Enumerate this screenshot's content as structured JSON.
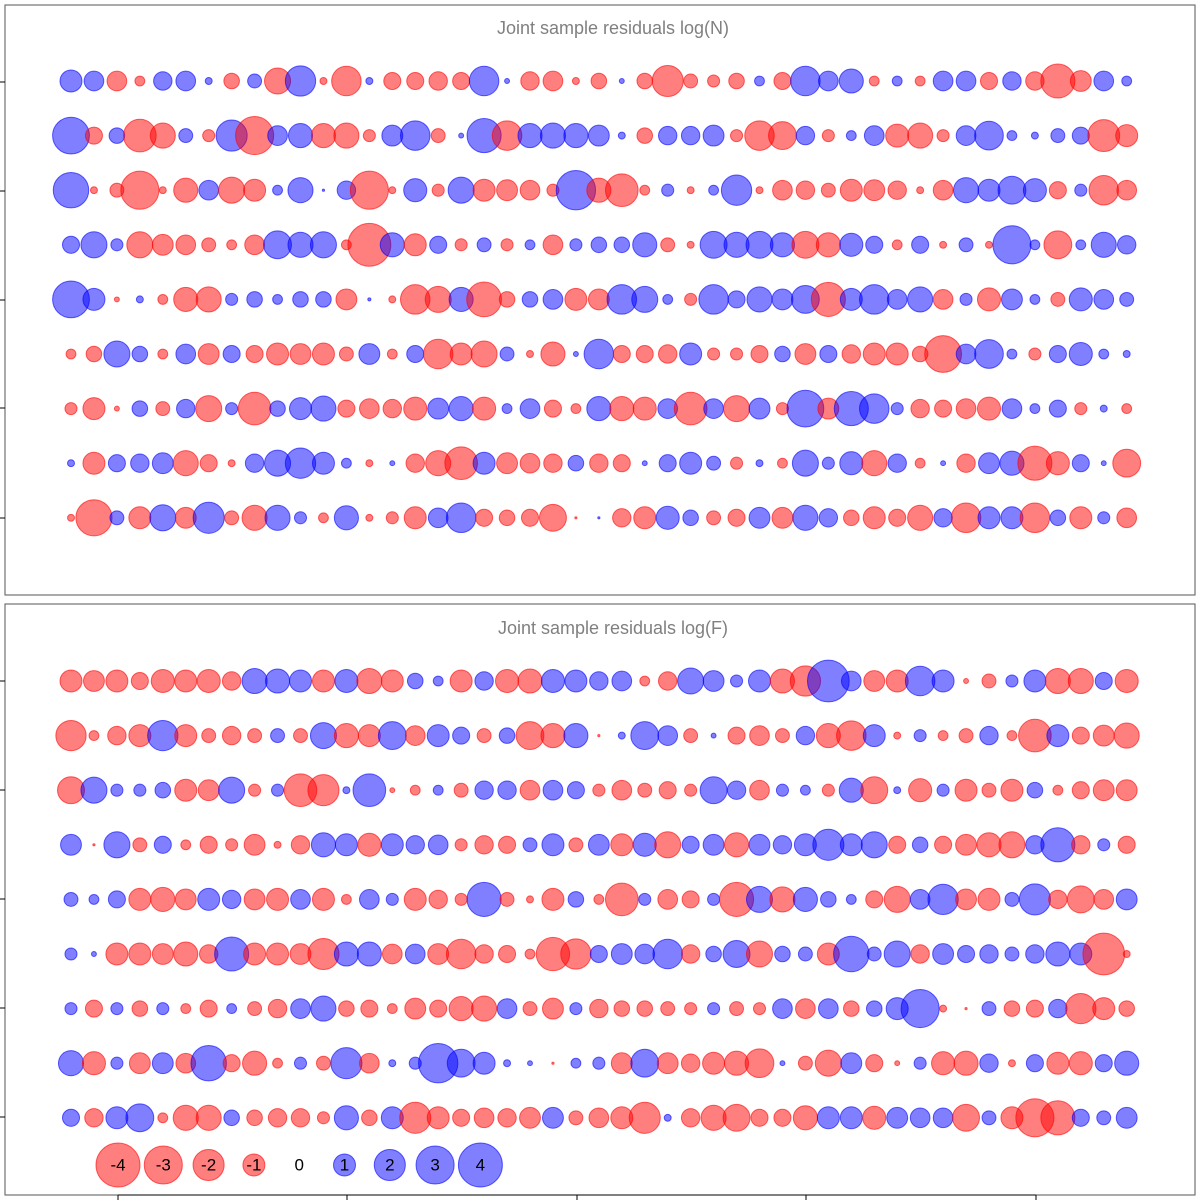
{
  "chart_data": [
    {
      "type": "bubble",
      "title": "Joint sample residuals log(N)",
      "negative_color": "#ff0000",
      "positive_color": "#0000ff",
      "rows": [
        [
          1.0,
          0.8,
          -0.8,
          -0.2,
          0.7,
          0.8,
          0.1,
          -0.5,
          0.4,
          -1.4,
          1.9,
          -0.1,
          -1.8,
          0.1,
          -0.6,
          -0.6,
          -0.7,
          -0.6,
          1.8,
          0.05,
          -0.7,
          -0.8,
          -0.1,
          -0.5,
          0.05,
          -0.5,
          -2.0,
          -0.4,
          -0.3,
          -0.5,
          0.2,
          -0.6,
          1.8,
          0.8,
          1.2,
          -0.2,
          0.2,
          -0.2,
          0.8,
          0.8,
          -0.6,
          0.7,
          -0.7,
          -2.4,
          -0.9,
          0.8,
          0.2
        ],
        [
          2.8,
          -0.6,
          0.5,
          -2.2,
          -1.3,
          0.4,
          -0.3,
          2.0,
          -3.0,
          0.8,
          1.2,
          -1.2,
          -1.3,
          -0.3,
          0.9,
          1.8,
          -0.4,
          0.05,
          2.4,
          -1.8,
          1.2,
          1.3,
          1.2,
          0.9,
          0.1,
          -0.5,
          0.7,
          0.7,
          0.9,
          -0.3,
          -1.8,
          -1.6,
          0.7,
          -0.3,
          0.2,
          0.8,
          -1.1,
          -1.3,
          -0.3,
          0.8,
          1.7,
          0.2,
          0.1,
          0.4,
          0.6,
          -2.1,
          -1.0
        ],
        [
          2.6,
          -0.1,
          -0.4,
          -3.0,
          -0.1,
          -1.2,
          0.8,
          -1.4,
          -1.0,
          0.2,
          1.3,
          0.01,
          0.7,
          -3.0,
          -0.1,
          1.1,
          -0.3,
          1.4,
          -1.0,
          -0.9,
          -0.8,
          -0.3,
          3.2,
          -1.2,
          -2.2,
          -0.2,
          0.3,
          -0.1,
          0.2,
          1.9,
          -0.1,
          -0.8,
          -0.7,
          -0.4,
          -1.0,
          -0.9,
          -0.7,
          -0.1,
          -0.8,
          1.3,
          1.0,
          1.6,
          1.1,
          -0.6,
          0.3,
          -1.8,
          -0.8
        ],
        [
          0.6,
          1.4,
          0.3,
          -1.4,
          -0.9,
          -0.8,
          -0.4,
          -0.2,
          -0.8,
          1.6,
          1.3,
          1.4,
          -0.2,
          -3.8,
          1.2,
          -1.0,
          0.6,
          -0.3,
          0.4,
          -0.3,
          0.2,
          -0.8,
          0.3,
          0.5,
          0.5,
          1.2,
          -0.4,
          -0.1,
          1.5,
          1.3,
          1.5,
          1.2,
          -1.5,
          -1.2,
          1.1,
          0.6,
          -0.2,
          0.6,
          -0.1,
          0.4,
          -0.1,
          3.0,
          0.2,
          -1.6,
          0.2,
          1.3,
          0.7
        ],
        [
          2.8,
          1.0,
          -0.05,
          0.1,
          -0.2,
          -1.2,
          -1.3,
          0.3,
          0.5,
          0.2,
          0.5,
          0.5,
          -0.9,
          0.02,
          -0.1,
          -1.8,
          -1.4,
          1.2,
          -2.5,
          -0.5,
          0.5,
          0.8,
          -1.0,
          -0.9,
          1.8,
          1.4,
          0.2,
          -0.3,
          1.8,
          0.6,
          1.3,
          0.9,
          1.6,
          -2.4,
          1.0,
          1.8,
          0.8,
          1.3,
          -0.8,
          0.3,
          -1.1,
          0.9,
          0.2,
          -0.4,
          1.1,
          0.8,
          0.4
        ],
        [
          -0.2,
          -0.5,
          1.4,
          0.5,
          -0.2,
          0.8,
          -0.9,
          0.6,
          -0.6,
          -1.0,
          -0.9,
          -1.0,
          -0.4,
          0.9,
          -0.2,
          0.6,
          -1.8,
          -1.0,
          -1.4,
          0.4,
          -0.1,
          -1.2,
          0.05,
          1.8,
          -0.6,
          -0.6,
          -0.7,
          1.0,
          -0.3,
          -0.3,
          -0.6,
          0.5,
          -0.9,
          0.6,
          -0.7,
          -1.0,
          -1.0,
          -0.5,
          -2.8,
          0.8,
          1.7,
          0.2,
          -0.3,
          0.6,
          1.1,
          0.2,
          0.1
        ],
        [
          -0.3,
          -1.0,
          -0.05,
          0.5,
          -0.4,
          0.7,
          -1.4,
          0.3,
          -2.2,
          0.5,
          1.0,
          1.3,
          -0.6,
          -0.8,
          -0.7,
          -1.1,
          0.9,
          1.2,
          -1.1,
          0.2,
          0.8,
          -0.6,
          -0.2,
          1.2,
          -1.2,
          -1.1,
          0.8,
          -2.2,
          0.8,
          -1.4,
          0.9,
          -0.3,
          2.8,
          -0.9,
          2.4,
          1.8,
          0.3,
          -0.7,
          -0.6,
          -0.8,
          -1.1,
          0.8,
          0.2,
          0.6,
          -0.3,
          0.1,
          -0.2
        ],
        [
          0.1,
          -1.0,
          0.6,
          0.7,
          0.9,
          -1.3,
          -0.6,
          -0.1,
          0.7,
          1.4,
          1.9,
          1.0,
          0.2,
          -0.1,
          0.05,
          -0.7,
          -1.3,
          -2.2,
          1.0,
          -0.9,
          -0.8,
          -0.7,
          0.5,
          -0.7,
          -0.6,
          0.05,
          0.6,
          1.0,
          0.4,
          -0.3,
          0.1,
          -0.2,
          1.4,
          0.3,
          1.1,
          -1.3,
          0.7,
          -0.2,
          0.05,
          -0.7,
          0.9,
          1.2,
          -2.4,
          -1.1,
          0.6,
          0.05,
          -1.6
        ],
        [
          -0.1,
          -2.7,
          0.4,
          -1.0,
          1.4,
          -0.9,
          2.0,
          -0.4,
          -1.3,
          1.3,
          0.3,
          -0.2,
          1.2,
          -0.1,
          -0.3,
          -1.0,
          0.8,
          1.8,
          -0.6,
          -0.5,
          -0.6,
          -1.5,
          -0.01,
          0.01,
          -0.7,
          -1.0,
          1.1,
          0.5,
          -0.4,
          -0.6,
          0.9,
          -0.9,
          1.3,
          0.7,
          -0.5,
          -1.0,
          -0.6,
          -1.3,
          0.7,
          -1.8,
          1.0,
          1.0,
          -1.8,
          0.5,
          -1.0,
          0.3,
          -0.8
        ]
      ]
    },
    {
      "type": "bubble",
      "title": "Joint sample residuals log(F)",
      "negative_color": "#ff0000",
      "positive_color": "#0000ff",
      "rows": [
        [
          -1.0,
          -0.9,
          -1.0,
          -0.6,
          -1.1,
          -1.0,
          -1.1,
          -0.7,
          1.3,
          1.2,
          1.0,
          -1.0,
          1.1,
          -1.3,
          -1.0,
          0.5,
          0.2,
          -1.0,
          0.7,
          -1.1,
          -1.2,
          1.1,
          1.0,
          0.7,
          0.8,
          -0.2,
          -0.7,
          1.4,
          0.9,
          0.3,
          1.0,
          -1.2,
          -1.9,
          3.6,
          0.8,
          -0.9,
          -1.0,
          1.8,
          1.0,
          -0.05,
          -0.4,
          0.3,
          1.0,
          -1.3,
          -1.3,
          0.6,
          -1.1
        ],
        [
          -1.9,
          -0.2,
          -0.7,
          -1.0,
          1.9,
          -1.0,
          -0.4,
          -0.7,
          -0.4,
          0.4,
          -0.4,
          1.4,
          -1.2,
          -1.0,
          1.6,
          -0.8,
          1.0,
          0.6,
          -0.4,
          0.5,
          -1.6,
          -1.2,
          1.2,
          -0.01,
          0.1,
          1.6,
          0.8,
          -0.4,
          0.05,
          -0.6,
          -0.8,
          -0.4,
          0.7,
          -1.2,
          -1.8,
          1.0,
          -0.1,
          0.3,
          -0.2,
          -0.4,
          0.7,
          -0.2,
          -2.2,
          1.0,
          -0.6,
          -0.9,
          -1.3
        ],
        [
          -1.5,
          1.4,
          0.3,
          0.3,
          0.5,
          -1.0,
          -0.9,
          1.4,
          -0.3,
          0.3,
          -2.2,
          -2.0,
          0.1,
          2.2,
          -0.05,
          -0.2,
          0.2,
          -0.4,
          0.7,
          0.7,
          -0.8,
          0.8,
          0.6,
          -0.3,
          -0.8,
          -0.4,
          -0.6,
          -0.3,
          1.5,
          0.7,
          -0.8,
          0.3,
          0.2,
          -0.3,
          1.2,
          -1.5,
          0.1,
          -1.1,
          0.3,
          -1.0,
          -0.4,
          -1.0,
          0.5,
          -0.2,
          -0.6,
          -0.9,
          -0.9
        ],
        [
          0.9,
          -0.01,
          1.4,
          -0.4,
          0.6,
          -0.2,
          -0.6,
          -0.3,
          -0.9,
          -0.1,
          -0.7,
          1.2,
          1.0,
          -1.1,
          1.0,
          0.7,
          0.8,
          -0.3,
          -0.7,
          -0.6,
          0.4,
          1.0,
          -0.4,
          0.9,
          -1.0,
          1.1,
          -1.4,
          0.6,
          0.9,
          -1.2,
          0.9,
          0.7,
          1.0,
          2.0,
          1.0,
          1.4,
          -0.6,
          0.5,
          -0.6,
          -0.9,
          -1.2,
          -1.4,
          0.7,
          2.4,
          -0.7,
          0.3,
          -0.6
        ],
        [
          0.4,
          0.2,
          0.6,
          -1.0,
          -1.2,
          -0.9,
          1.0,
          0.7,
          -0.9,
          -1.0,
          0.8,
          -1.0,
          -0.2,
          0.8,
          0.3,
          -1.0,
          -0.7,
          -0.3,
          2.4,
          -0.4,
          -0.1,
          -1.0,
          0.5,
          -0.2,
          -2.2,
          0.3,
          -0.8,
          -0.6,
          0.3,
          -2.4,
          1.4,
          -1.3,
          1.2,
          0.5,
          0.2,
          -0.6,
          -1.4,
          0.8,
          1.9,
          -0.9,
          -1.0,
          0.4,
          2.0,
          -0.7,
          -1.5,
          -0.8,
          0.9
        ],
        [
          0.3,
          0.05,
          -1.0,
          -1.0,
          -0.9,
          -1.2,
          -0.7,
          2.4,
          -1.0,
          -1.0,
          -0.9,
          -2.0,
          1.2,
          1.2,
          -0.8,
          0.8,
          -0.9,
          -1.8,
          -0.7,
          -0.6,
          -0.2,
          -2.3,
          -1.9,
          0.6,
          0.9,
          0.8,
          1.8,
          -0.7,
          0.5,
          1.5,
          -1.4,
          0.5,
          0.4,
          -1.0,
          2.6,
          0.4,
          1.4,
          -0.7,
          0.9,
          0.6,
          0.7,
          0.4,
          0.7,
          1.2,
          1.0,
          -3.6,
          -0.1
        ],
        [
          0.3,
          -0.6,
          0.3,
          -0.5,
          0.3,
          -0.2,
          -0.6,
          0.2,
          -0.4,
          -0.7,
          0.8,
          1.3,
          -0.5,
          -0.6,
          -0.2,
          -0.9,
          -0.6,
          -1.2,
          -1.3,
          0.8,
          -0.4,
          -0.9,
          0.3,
          -0.7,
          -0.5,
          -0.5,
          -0.4,
          -0.3,
          0.3,
          -0.4,
          -0.3,
          0.8,
          -0.8,
          0.8,
          -0.5,
          0.5,
          1.0,
          3.0,
          -0.1,
          -0.01,
          0.4,
          -0.5,
          -0.6,
          0.7,
          -1.9,
          -1.0,
          -0.5
        ],
        [
          1.3,
          -1.1,
          0.3,
          -0.9,
          0.9,
          -0.8,
          2.6,
          -0.6,
          -1.2,
          -0.2,
          0.3,
          -0.4,
          2.0,
          -0.8,
          0.1,
          0.3,
          3.2,
          1.6,
          1.0,
          0.1,
          0.05,
          -0.01,
          0.2,
          0.3,
          -0.9,
          1.6,
          -0.9,
          -0.7,
          -1.0,
          -1.2,
          -1.7,
          0.05,
          -0.4,
          -1.4,
          0.9,
          -0.6,
          -0.05,
          0.3,
          -1.1,
          -1.2,
          0.7,
          -0.1,
          0.6,
          -1.0,
          -1.1,
          0.6,
          1.2
        ],
        [
          0.6,
          -0.7,
          1.0,
          1.6,
          -0.2,
          -1.3,
          -1.3,
          0.5,
          -0.5,
          -0.7,
          -0.7,
          -0.3,
          1.2,
          -0.5,
          1.0,
          -2.0,
          -1.0,
          -0.6,
          -0.8,
          -0.7,
          -0.9,
          0.9,
          -0.4,
          -0.8,
          -1.0,
          -2.0,
          0.1,
          -0.7,
          -1.3,
          -1.5,
          -0.6,
          -0.6,
          -1.2,
          1.0,
          1.0,
          -1.1,
          0.9,
          0.8,
          0.8,
          -1.5,
          0.4,
          -1.0,
          -3.0,
          -2.4,
          0.6,
          0.4,
          0.9
        ]
      ],
      "legend": [
        -4,
        -3,
        -2,
        -1,
        0,
        1,
        2,
        3,
        4
      ]
    }
  ]
}
